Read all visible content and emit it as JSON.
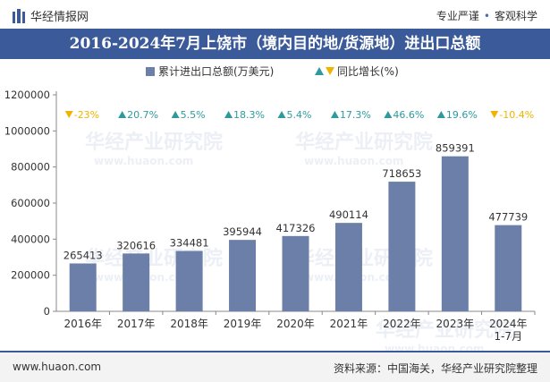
{
  "header": {
    "brand": "华经情报网",
    "tagline_left": "专业严谨",
    "tagline_right": "客观科学",
    "tagline_separator": "•"
  },
  "title": "2016-2024年7月上饶市（境内目的地/货源地）进出口总额",
  "legend": {
    "bar_label": "累计进出口总额(万美元)",
    "line_label": "同比增长(%)"
  },
  "watermark": {
    "cn": "华经产业研究院",
    "en": "www.huaon.com"
  },
  "footer": {
    "website": "www.huaon.com",
    "source": "资料来源：中国海关，华经产业研究院整理"
  },
  "colors": {
    "bar": "#6b7fa8",
    "up": "#2f9a9e",
    "down": "#f0b400",
    "title_bg": "#3b5a99"
  },
  "chart_data": {
    "type": "bar",
    "categories": [
      "2016年",
      "2017年",
      "2018年",
      "2019年",
      "2020年",
      "2021年",
      "2022年",
      "2023年",
      "2024年\n1-7月"
    ],
    "series": [
      {
        "name": "累计进出口总额(万美元)",
        "values": [
          265413,
          320616,
          334481,
          395944,
          417326,
          490114,
          718653,
          859391,
          477739
        ]
      },
      {
        "name": "同比增长(%)",
        "values": [
          -23,
          20.7,
          5.5,
          18.3,
          5.4,
          17.3,
          46.6,
          19.6,
          -10.4
        ]
      }
    ],
    "growth_labels": [
      "-23%",
      "20.7%",
      "5.5%",
      "18.3%",
      "5.4%",
      "17.3%",
      "46.6%",
      "19.6%",
      "-10.4%"
    ],
    "value_labels": [
      "265413",
      "320616",
      "334481",
      "395944",
      "417326",
      "490114",
      "718653",
      "859391",
      "477739"
    ],
    "yticks": [
      "0",
      "200000",
      "400000",
      "600000",
      "800000",
      "1000000",
      "1200000"
    ],
    "ylim": [
      0,
      1200000
    ],
    "legend_position": "top-center",
    "grid": false
  }
}
